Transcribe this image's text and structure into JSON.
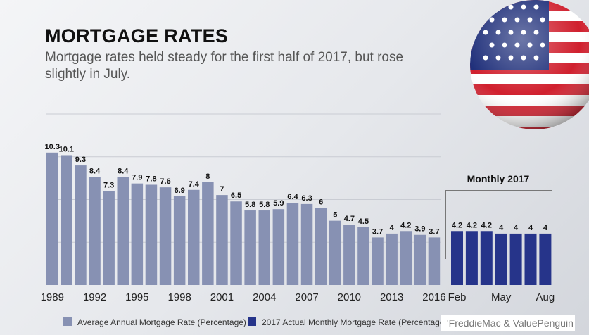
{
  "chart_data": [
    {
      "type": "bar",
      "title": "MORTGAGE RATES",
      "subtitle": "Mortgage rates held steady for the first half of 2017, but rose slightly in July.",
      "categories": [
        "1989",
        "1990",
        "1991",
        "1992",
        "1993",
        "1994",
        "1995",
        "1996",
        "1997",
        "1998",
        "1999",
        "2000",
        "2001",
        "2002",
        "2003",
        "2004",
        "2005",
        "2006",
        "2007",
        "2008",
        "2009",
        "2010",
        "2011",
        "2012",
        "2013",
        "2014",
        "2015",
        "2016"
      ],
      "tick_labels": [
        "1989",
        "1992",
        "1995",
        "1998",
        "2001",
        "2004",
        "2007",
        "2010",
        "2013",
        "2016"
      ],
      "series": [
        {
          "name": "Average Annual Mortgage Rate (Percentage)",
          "values": [
            10.3,
            10.1,
            9.3,
            8.4,
            7.3,
            8.4,
            7.9,
            7.8,
            7.6,
            6.9,
            7.4,
            8,
            7,
            6.5,
            5.8,
            5.8,
            5.9,
            6.4,
            6.3,
            6,
            5,
            4.7,
            4.5,
            3.7,
            4,
            4.2,
            3.9,
            3.7
          ],
          "color": "#8791b3"
        }
      ],
      "data_labels": true,
      "grid": true,
      "ylim": [
        0,
        13.3
      ]
    },
    {
      "type": "bar",
      "title": "Monthly 2017",
      "categories": [
        "Feb",
        "Mar",
        "Apr",
        "May",
        "Jun",
        "Jul",
        "Aug"
      ],
      "tick_labels": [
        "Feb",
        "May",
        "Aug"
      ],
      "series": [
        {
          "name": "2017 Actual Monthly Mortgage Rate (Percentage)",
          "values": [
            4.2,
            4.2,
            4.2,
            4,
            4,
            4,
            4
          ],
          "color": "#26348a"
        }
      ],
      "data_labels": true,
      "ylim": [
        0,
        13.3
      ]
    }
  ],
  "legend_placement": "bottom-left",
  "source": "'FreddieMac & ValuePenguin",
  "flag_icon": "us-flag-sphere"
}
